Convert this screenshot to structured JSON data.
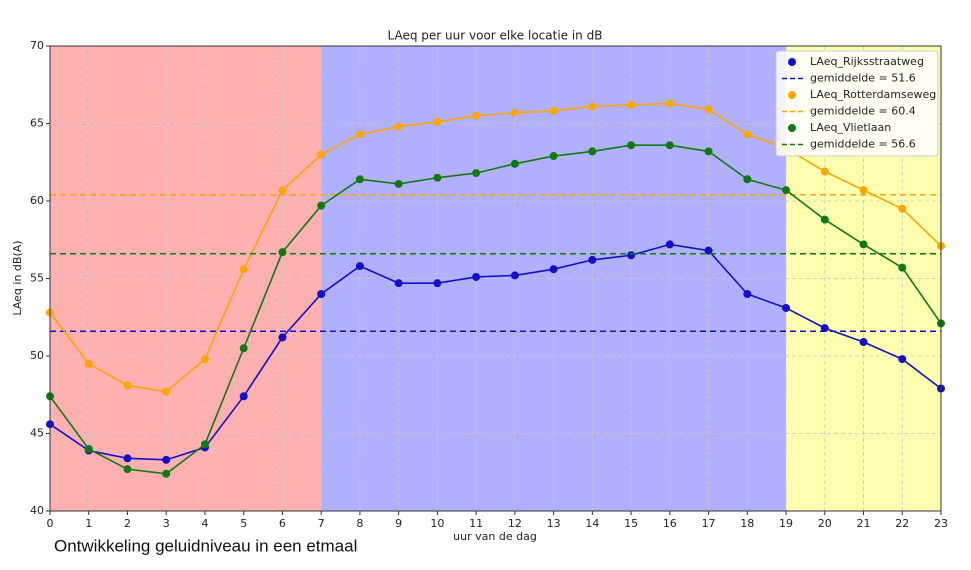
{
  "chart_data": {
    "type": "line",
    "title": "LAeq per uur voor elke locatie in dB",
    "xlabel": "uur van de dag",
    "ylabel": "LAeq in dB(A)",
    "caption": "Ontwikkeling geluidniveau in een etmaal",
    "x": [
      0,
      1,
      2,
      3,
      4,
      5,
      6,
      7,
      8,
      9,
      10,
      11,
      12,
      13,
      14,
      15,
      16,
      17,
      18,
      19,
      20,
      21,
      22,
      23
    ],
    "xlim": [
      0,
      23
    ],
    "xticks": [
      0,
      1,
      2,
      3,
      4,
      5,
      6,
      7,
      8,
      9,
      10,
      11,
      12,
      13,
      14,
      15,
      16,
      17,
      18,
      19,
      20,
      21,
      22,
      23
    ],
    "ylim": [
      40,
      70
    ],
    "yticks": [
      40,
      45,
      50,
      55,
      60,
      65,
      70
    ],
    "grid": true,
    "legend": "upper right",
    "spans": [
      {
        "start": 0,
        "end": 7,
        "color": "#ffb0b0"
      },
      {
        "start": 7,
        "end": 19,
        "color": "#b0b0ff"
      },
      {
        "start": 19,
        "end": 23,
        "color": "#ffffb0"
      }
    ],
    "series": [
      {
        "name": "LAeq_Rijksstraatweg",
        "color": "#1010cc",
        "mean": 51.6,
        "mean_label": "gemiddelde = 51.6",
        "values": [
          45.6,
          43.9,
          43.4,
          43.3,
          44.1,
          47.4,
          51.2,
          54.0,
          55.8,
          54.7,
          54.7,
          55.1,
          55.2,
          55.6,
          56.2,
          56.5,
          57.2,
          56.8,
          54.0,
          53.1,
          51.8,
          50.9,
          49.8,
          47.9
        ]
      },
      {
        "name": "LAeq_Rotterdamseweg",
        "color": "#ffa500",
        "mean": 60.4,
        "mean_label": "gemiddelde = 60.4",
        "values": [
          52.8,
          49.5,
          48.1,
          47.7,
          49.8,
          55.6,
          60.7,
          63.0,
          64.3,
          64.8,
          65.1,
          65.5,
          65.7,
          65.8,
          66.1,
          66.2,
          66.3,
          65.9,
          64.3,
          63.4,
          61.9,
          60.7,
          59.5,
          57.1
        ]
      },
      {
        "name": "LAeq_Vlietlaan",
        "color": "#107a10",
        "mean": 56.6,
        "mean_label": "gemiddelde = 56.6",
        "values": [
          47.4,
          44.0,
          42.7,
          42.4,
          44.3,
          50.5,
          56.7,
          59.7,
          61.4,
          61.1,
          61.5,
          61.8,
          62.4,
          62.9,
          63.2,
          63.6,
          63.6,
          63.2,
          61.4,
          60.7,
          58.8,
          57.2,
          55.7,
          52.1
        ]
      }
    ]
  }
}
